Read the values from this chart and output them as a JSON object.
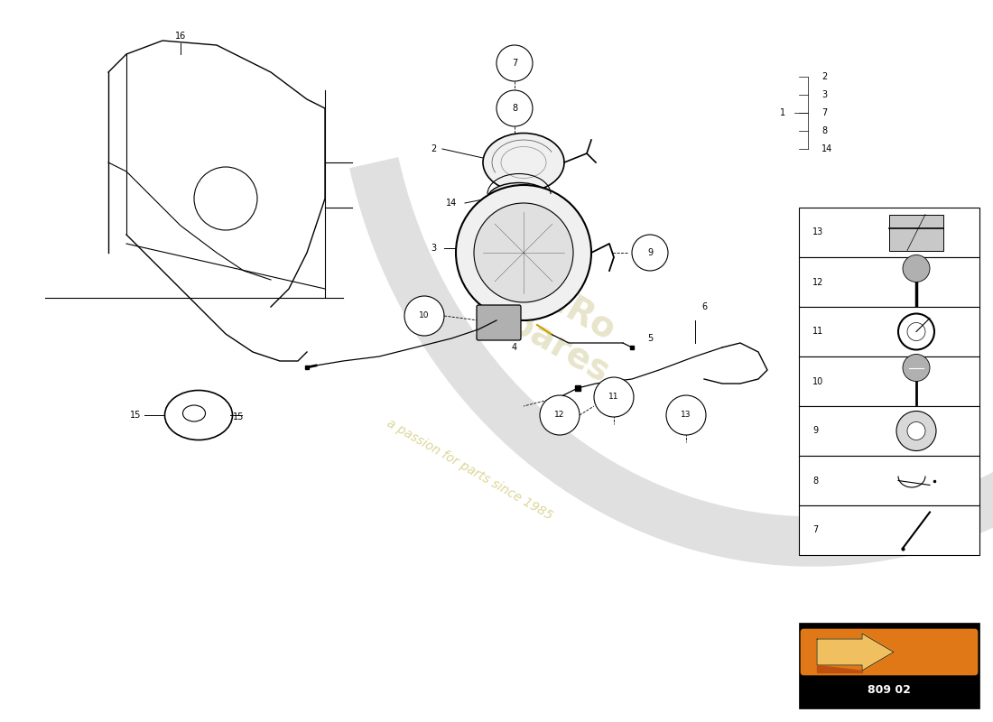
{
  "bg_color": "#ffffff",
  "part_number": "809 02",
  "watermark_color": "#d4cfa0",
  "watermark_subcolor": "#c8c060",
  "sidebar_nums": [
    "13",
    "12",
    "11",
    "10",
    "9",
    "8",
    "7"
  ],
  "legend_nums": [
    "2",
    "3",
    "7",
    "8",
    "14"
  ],
  "top_legend_num": "1"
}
